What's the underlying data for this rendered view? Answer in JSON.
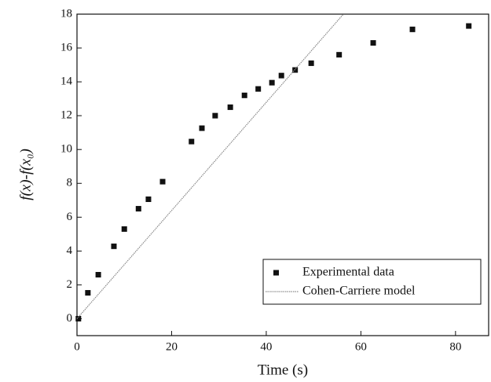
{
  "chart_data": {
    "type": "scatter",
    "xlabel": "Time (s)",
    "ylabel": "f(x)-f(x₀)",
    "xlim": [
      0,
      87
    ],
    "ylim": [
      -1,
      18
    ],
    "xticks": [
      0,
      20,
      40,
      60,
      80
    ],
    "yticks": [
      0,
      2,
      4,
      6,
      8,
      10,
      12,
      14,
      16,
      18
    ],
    "legend": "lower right",
    "series": [
      {
        "name": "Experimental data",
        "type": "scatter",
        "marker": "square",
        "color": "#111111",
        "x": [
          0.3,
          2.3,
          4.5,
          7.8,
          10,
          13,
          15.1,
          18.1,
          24.2,
          26.4,
          29.2,
          32.4,
          35.4,
          38.3,
          41.2,
          43.2,
          46.1,
          49.5,
          55.4,
          62.6,
          70.9,
          82.8
        ],
        "values": [
          0,
          1.53,
          2.6,
          4.28,
          5.3,
          6.5,
          7.06,
          8.1,
          10.47,
          11.26,
          12,
          12.5,
          13.2,
          13.58,
          13.95,
          14.37,
          14.7,
          15.1,
          15.6,
          16.3,
          17.1,
          17.3
        ]
      },
      {
        "name": "Cohen-Carriere model",
        "type": "line",
        "color": "#8a8a8a",
        "x": [
          0,
          56.3
        ],
        "values": [
          0,
          18
        ]
      }
    ]
  }
}
